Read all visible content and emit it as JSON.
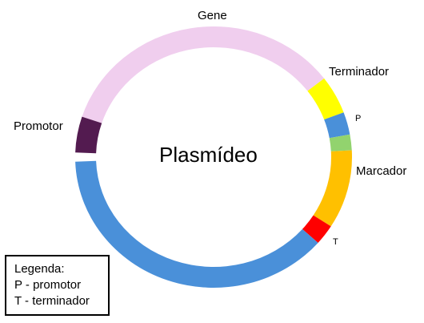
{
  "diagram": {
    "title": "Plasmídeo",
    "labels": {
      "gene": "Gene",
      "terminator": "Terminador",
      "promoter_small": "P",
      "marker": "Marcador",
      "terminator_small": "T",
      "promoter": "Promotor"
    },
    "segments": [
      {
        "name": "gene",
        "color": "#F0CEEE",
        "from_deg": -37,
        "to_deg": -162
      },
      {
        "name": "terminator",
        "color": "#FFFF00",
        "from_deg": -20,
        "to_deg": -37
      },
      {
        "name": "backbone-short",
        "color": "#4A90D9",
        "from_deg": -10,
        "to_deg": -20
      },
      {
        "name": "promoter-small",
        "color": "#92D36E",
        "from_deg": -3,
        "to_deg": -10
      },
      {
        "name": "marker",
        "color": "#FFC000",
        "from_deg": 32,
        "to_deg": -3
      },
      {
        "name": "terminator-small",
        "color": "#FF0000",
        "from_deg": 41,
        "to_deg": 32
      },
      {
        "name": "backbone-long",
        "color": "#4A90D9",
        "from_deg": 178,
        "to_deg": 41
      },
      {
        "name": "promoter",
        "color": "#531B50",
        "from_deg": -162,
        "to_deg": -178
      }
    ]
  },
  "legend": {
    "title": "Legenda:",
    "line1": "P - promotor",
    "line2": "T - terminador"
  }
}
